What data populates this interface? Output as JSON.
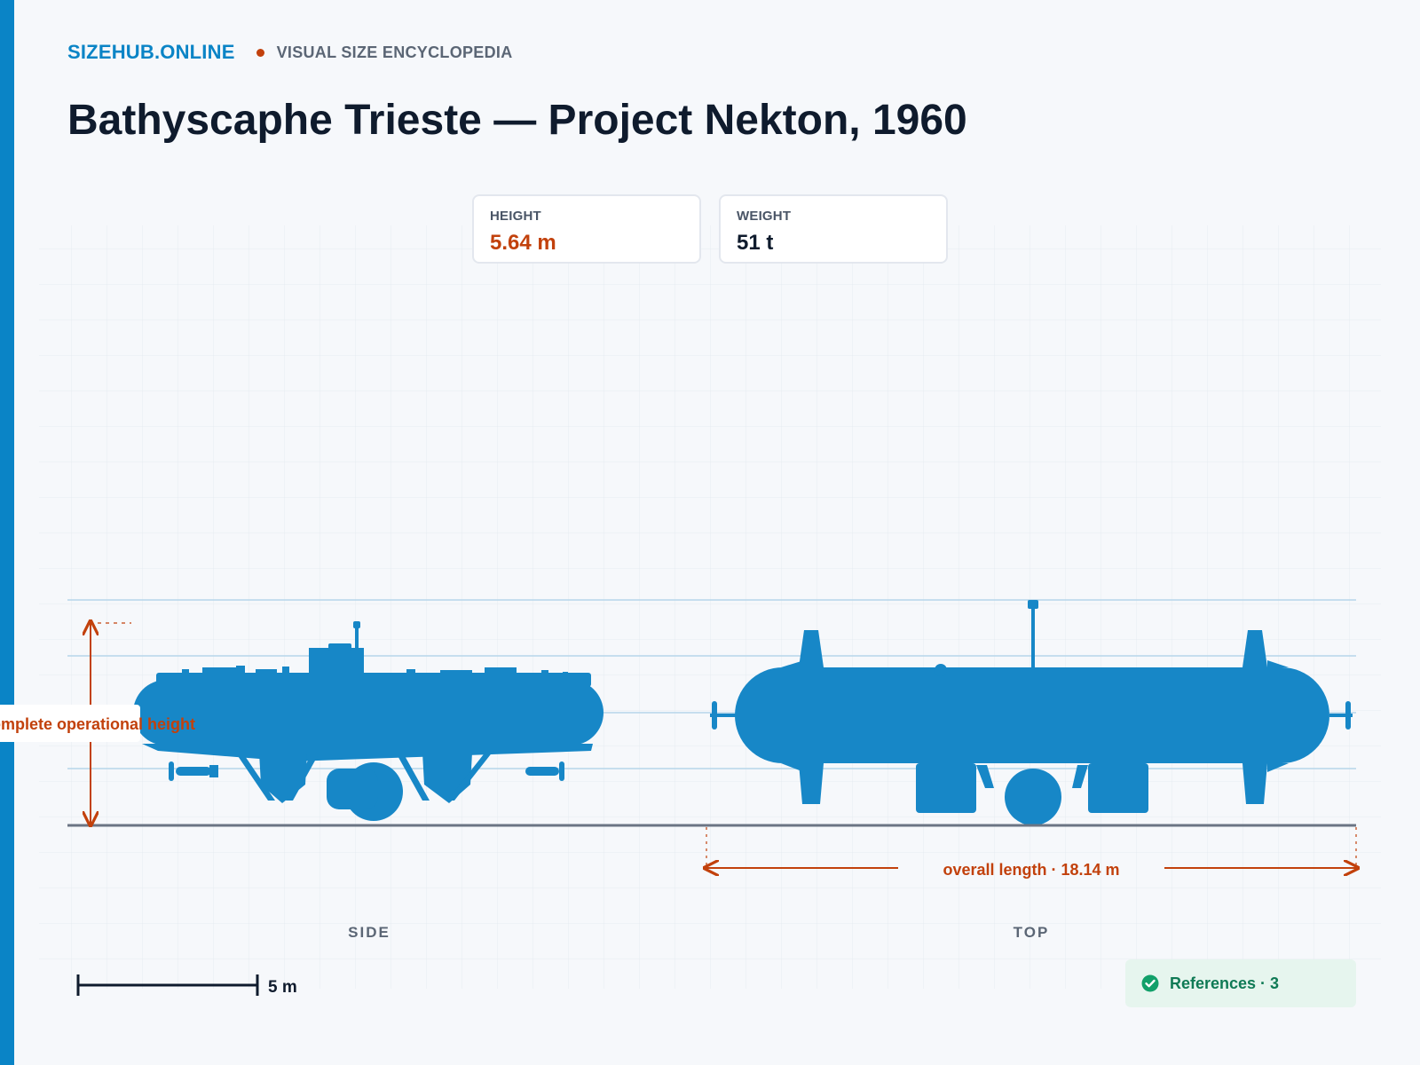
{
  "brand": {
    "name": "SIZEHUB.ONLINE",
    "tagline": "VISUAL SIZE ENCYCLOPEDIA"
  },
  "page": {
    "title": "Bathyscaphe Trieste — Project Nekton, 1960"
  },
  "stats": {
    "height": {
      "label": "HEIGHT",
      "value": "5.64 m"
    },
    "weight": {
      "label": "WEIGHT",
      "value": "51 t"
    }
  },
  "diagram": {
    "height_callout": "complete operational height",
    "length_callout": "overall length · 18.14 m",
    "views": {
      "side": "SIDE",
      "top": "TOP"
    },
    "scale_bar": {
      "label": "5 m",
      "meters": 5
    }
  },
  "references": {
    "label": "References · 3",
    "icon": "check-circle-icon"
  },
  "colors": {
    "brand": "#0a84c6",
    "silhouette": "#1787c7",
    "callout": "#c2410c",
    "ink": "#0f1b2d",
    "success": "#0f7a55"
  }
}
